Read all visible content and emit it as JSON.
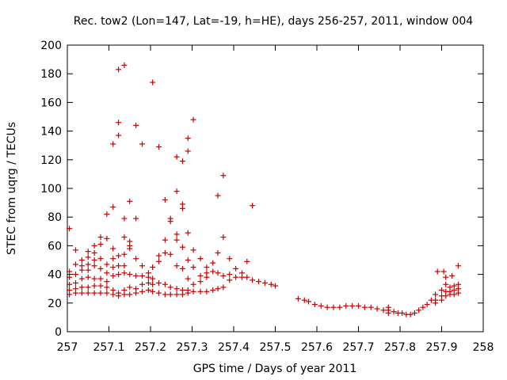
{
  "chart_data": {
    "type": "scatter",
    "title": "Rec. tow2 (Lon=147, Lat=-19, h=HE), days 256-257, 2011, window 004",
    "xlabel": "GPS time / Days of year 2011",
    "ylabel": "STEC from uqrg / TECUs",
    "xlim": [
      257,
      258
    ],
    "ylim": [
      0,
      200
    ],
    "xticks": [
      "257",
      "257.1",
      "257.2",
      "257.3",
      "257.4",
      "257.5",
      "257.6",
      "257.7",
      "257.8",
      "257.9",
      "258"
    ],
    "yticks": [
      "0",
      "20",
      "40",
      "60",
      "80",
      "100",
      "120",
      "140",
      "160",
      "180",
      "200"
    ],
    "grid": false,
    "marker": "+",
    "color": "#cc0000",
    "series": [
      {
        "points": [
          [
            257.005,
            72
          ],
          [
            257.005,
            42
          ],
          [
            257.005,
            38
          ],
          [
            257.005,
            33
          ],
          [
            257.005,
            29
          ],
          [
            257.005,
            26
          ],
          [
            257.02,
            57
          ],
          [
            257.02,
            47
          ],
          [
            257.02,
            40
          ],
          [
            257.02,
            34
          ],
          [
            257.02,
            30
          ],
          [
            257.02,
            27
          ],
          [
            257.035,
            50
          ],
          [
            257.035,
            46
          ],
          [
            257.035,
            43
          ],
          [
            257.035,
            37
          ],
          [
            257.035,
            31
          ],
          [
            257.035,
            27
          ],
          [
            257.05,
            56
          ],
          [
            257.05,
            52
          ],
          [
            257.05,
            47
          ],
          [
            257.05,
            43
          ],
          [
            257.05,
            38
          ],
          [
            257.05,
            31
          ],
          [
            257.05,
            27
          ],
          [
            257.065,
            60
          ],
          [
            257.065,
            55
          ],
          [
            257.065,
            50
          ],
          [
            257.065,
            46
          ],
          [
            257.065,
            37
          ],
          [
            257.065,
            32
          ],
          [
            257.065,
            27
          ],
          [
            257.08,
            66
          ],
          [
            257.08,
            61
          ],
          [
            257.08,
            51
          ],
          [
            257.08,
            44
          ],
          [
            257.08,
            37
          ],
          [
            257.08,
            32
          ],
          [
            257.08,
            27
          ],
          [
            257.095,
            82
          ],
          [
            257.095,
            65
          ],
          [
            257.095,
            47
          ],
          [
            257.095,
            41
          ],
          [
            257.095,
            35
          ],
          [
            257.095,
            31
          ],
          [
            257.095,
            27
          ],
          [
            257.11,
            131
          ],
          [
            257.11,
            87
          ],
          [
            257.11,
            58
          ],
          [
            257.11,
            51
          ],
          [
            257.11,
            45
          ],
          [
            257.11,
            39
          ],
          [
            257.11,
            29
          ],
          [
            257.11,
            26
          ],
          [
            257.123,
            183
          ],
          [
            257.123,
            146
          ],
          [
            257.123,
            137
          ],
          [
            257.123,
            53
          ],
          [
            257.123,
            46
          ],
          [
            257.123,
            40
          ],
          [
            257.123,
            27
          ],
          [
            257.123,
            25
          ],
          [
            257.137,
            186
          ],
          [
            257.137,
            79
          ],
          [
            257.137,
            66
          ],
          [
            257.137,
            54
          ],
          [
            257.137,
            46
          ],
          [
            257.137,
            41
          ],
          [
            257.137,
            29
          ],
          [
            257.137,
            26
          ],
          [
            257.15,
            91
          ],
          [
            257.15,
            63
          ],
          [
            257.15,
            60
          ],
          [
            257.15,
            58
          ],
          [
            257.15,
            40
          ],
          [
            257.15,
            31
          ],
          [
            257.15,
            26
          ],
          [
            257.165,
            144
          ],
          [
            257.165,
            79
          ],
          [
            257.165,
            51
          ],
          [
            257.165,
            39
          ],
          [
            257.165,
            30
          ],
          [
            257.165,
            27
          ],
          [
            257.18,
            131
          ],
          [
            257.18,
            46
          ],
          [
            257.18,
            39
          ],
          [
            257.18,
            33
          ],
          [
            257.18,
            28
          ],
          [
            257.195,
            41
          ],
          [
            257.195,
            38
          ],
          [
            257.195,
            34
          ],
          [
            257.195,
            29
          ],
          [
            257.205,
            174
          ],
          [
            257.205,
            45
          ],
          [
            257.205,
            37
          ],
          [
            257.205,
            33
          ],
          [
            257.205,
            28
          ],
          [
            257.22,
            129
          ],
          [
            257.22,
            53
          ],
          [
            257.22,
            49
          ],
          [
            257.22,
            34
          ],
          [
            257.22,
            27
          ],
          [
            257.235,
            92
          ],
          [
            257.235,
            64
          ],
          [
            257.235,
            55
          ],
          [
            257.235,
            33
          ],
          [
            257.235,
            26
          ],
          [
            257.248,
            79
          ],
          [
            257.248,
            77
          ],
          [
            257.248,
            54
          ],
          [
            257.248,
            31
          ],
          [
            257.248,
            26
          ],
          [
            257.263,
            122
          ],
          [
            257.263,
            98
          ],
          [
            257.263,
            68
          ],
          [
            257.263,
            64
          ],
          [
            257.263,
            46
          ],
          [
            257.263,
            30
          ],
          [
            257.263,
            26
          ],
          [
            257.277,
            119
          ],
          [
            257.277,
            89
          ],
          [
            257.277,
            86
          ],
          [
            257.277,
            59
          ],
          [
            257.277,
            44
          ],
          [
            257.277,
            29
          ],
          [
            257.277,
            26
          ],
          [
            257.29,
            135
          ],
          [
            257.29,
            126
          ],
          [
            257.29,
            69
          ],
          [
            257.29,
            50
          ],
          [
            257.29,
            37
          ],
          [
            257.29,
            29
          ],
          [
            257.29,
            27
          ],
          [
            257.303,
            148
          ],
          [
            257.303,
            57
          ],
          [
            257.303,
            45
          ],
          [
            257.303,
            33
          ],
          [
            257.303,
            28
          ],
          [
            257.32,
            51
          ],
          [
            257.32,
            39
          ],
          [
            257.32,
            35
          ],
          [
            257.32,
            28
          ],
          [
            257.335,
            45
          ],
          [
            257.335,
            41
          ],
          [
            257.335,
            38
          ],
          [
            257.335,
            28
          ],
          [
            257.35,
            48
          ],
          [
            257.35,
            42
          ],
          [
            257.35,
            29
          ],
          [
            257.362,
            95
          ],
          [
            257.362,
            55
          ],
          [
            257.362,
            41
          ],
          [
            257.362,
            30
          ],
          [
            257.375,
            109
          ],
          [
            257.375,
            66
          ],
          [
            257.375,
            39
          ],
          [
            257.375,
            31
          ],
          [
            257.39,
            51
          ],
          [
            257.39,
            40
          ],
          [
            257.39,
            36
          ],
          [
            257.405,
            44
          ],
          [
            257.405,
            38
          ],
          [
            257.42,
            41
          ],
          [
            257.42,
            38
          ],
          [
            257.432,
            49
          ],
          [
            257.432,
            38
          ],
          [
            257.445,
            88
          ],
          [
            257.445,
            36
          ],
          [
            257.46,
            35
          ],
          [
            257.475,
            34
          ],
          [
            257.49,
            33
          ],
          [
            257.5,
            32
          ],
          [
            257.555,
            23
          ],
          [
            257.57,
            22
          ],
          [
            257.58,
            21
          ],
          [
            257.595,
            19
          ],
          [
            257.61,
            18
          ],
          [
            257.625,
            17
          ],
          [
            257.64,
            17
          ],
          [
            257.655,
            17
          ],
          [
            257.67,
            18
          ],
          [
            257.685,
            18
          ],
          [
            257.7,
            18
          ],
          [
            257.715,
            17
          ],
          [
            257.73,
            17
          ],
          [
            257.745,
            16
          ],
          [
            257.76,
            15
          ],
          [
            257.772,
            17
          ],
          [
            257.772,
            15
          ],
          [
            257.772,
            13
          ],
          [
            257.785,
            14
          ],
          [
            257.795,
            13
          ],
          [
            257.805,
            13
          ],
          [
            257.815,
            12
          ],
          [
            257.825,
            12
          ],
          [
            257.835,
            13
          ],
          [
            257.845,
            15
          ],
          [
            257.855,
            17
          ],
          [
            257.865,
            19
          ],
          [
            257.875,
            22
          ],
          [
            257.885,
            26
          ],
          [
            257.885,
            22
          ],
          [
            257.885,
            20
          ],
          [
            257.89,
            42
          ],
          [
            257.9,
            29
          ],
          [
            257.9,
            25
          ],
          [
            257.9,
            22
          ],
          [
            257.905,
            42
          ],
          [
            257.91,
            38
          ],
          [
            257.91,
            33
          ],
          [
            257.91,
            28
          ],
          [
            257.91,
            25
          ],
          [
            257.92,
            31
          ],
          [
            257.92,
            28
          ],
          [
            257.92,
            26
          ],
          [
            257.925,
            39
          ],
          [
            257.93,
            32
          ],
          [
            257.93,
            29
          ],
          [
            257.93,
            26
          ],
          [
            257.94,
            46
          ],
          [
            257.94,
            33
          ],
          [
            257.94,
            30
          ],
          [
            257.94,
            27
          ]
        ]
      }
    ]
  }
}
